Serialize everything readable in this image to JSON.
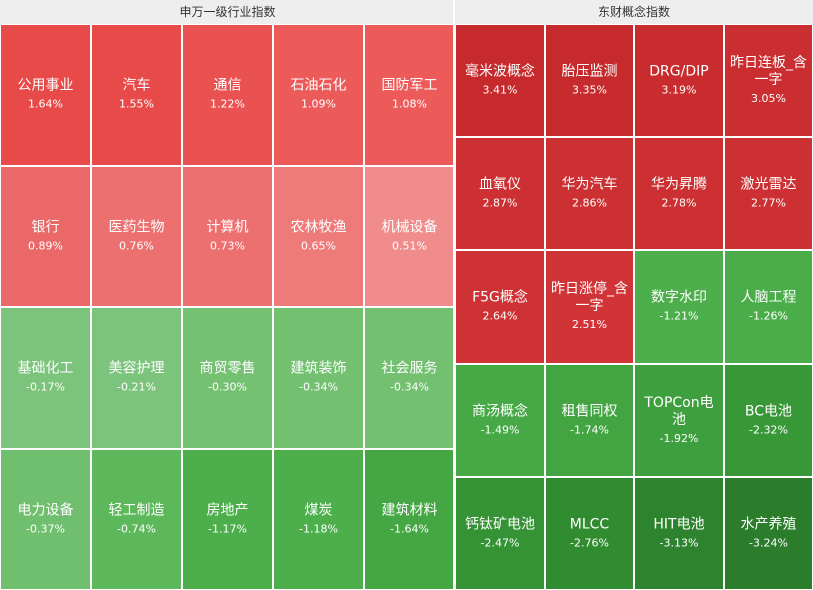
{
  "chart_data": [
    {
      "type": "heatmap",
      "title": "申万一级行业指数",
      "columns": 5,
      "cells": [
        {
          "name": "公用事业",
          "value": "1.64%",
          "color": "#e84a4a"
        },
        {
          "name": "汽车",
          "value": "1.55%",
          "color": "#e84a4a"
        },
        {
          "name": "通信",
          "value": "1.22%",
          "color": "#ea5252"
        },
        {
          "name": "石油石化",
          "value": "1.09%",
          "color": "#ec5a5a"
        },
        {
          "name": "国防军工",
          "value": "1.08%",
          "color": "#ec5a5a"
        },
        {
          "name": "银行",
          "value": "0.89%",
          "color": "#ea6868"
        },
        {
          "name": "医药生物",
          "value": "0.76%",
          "color": "#ec7070"
        },
        {
          "name": "计算机",
          "value": "0.73%",
          "color": "#ec7070"
        },
        {
          "name": "农林牧渔",
          "value": "0.65%",
          "color": "#ee7a7a"
        },
        {
          "name": "机械设备",
          "value": "0.51%",
          "color": "#f08c8c"
        },
        {
          "name": "基础化工",
          "value": "-0.17%",
          "color": "#7cc47b"
        },
        {
          "name": "美容护理",
          "value": "-0.21%",
          "color": "#7cc47b"
        },
        {
          "name": "商贸零售",
          "value": "-0.30%",
          "color": "#74c172"
        },
        {
          "name": "建筑装饰",
          "value": "-0.34%",
          "color": "#72c070"
        },
        {
          "name": "社会服务",
          "value": "-0.34%",
          "color": "#72c070"
        },
        {
          "name": "电力设备",
          "value": "-0.37%",
          "color": "#70bf6e"
        },
        {
          "name": "轻工制造",
          "value": "-0.74%",
          "color": "#5cb85a"
        },
        {
          "name": "房地产",
          "value": "-1.17%",
          "color": "#4caf4c"
        },
        {
          "name": "煤炭",
          "value": "-1.18%",
          "color": "#4caf4c"
        },
        {
          "name": "建筑材料",
          "value": "-1.64%",
          "color": "#44a744"
        }
      ]
    },
    {
      "type": "heatmap",
      "title": "东财概念指数",
      "columns": 4,
      "cells": [
        {
          "name": "毫米波概念",
          "value": "3.41%",
          "color": "#c62a2c"
        },
        {
          "name": "胎压监测",
          "value": "3.35%",
          "color": "#c62a2c"
        },
        {
          "name": "DRG/DIP",
          "value": "3.19%",
          "color": "#c82c2e"
        },
        {
          "name": "昨日连板_含一字",
          "value": "3.05%",
          "color": "#ca2e30"
        },
        {
          "name": "血氧仪",
          "value": "2.87%",
          "color": "#cc3032"
        },
        {
          "name": "华为汽车",
          "value": "2.86%",
          "color": "#cc3032"
        },
        {
          "name": "华为昇腾",
          "value": "2.78%",
          "color": "#cc3032"
        },
        {
          "name": "激光雷达",
          "value": "2.77%",
          "color": "#cc3032"
        },
        {
          "name": "F5G概念",
          "value": "2.64%",
          "color": "#ce3234"
        },
        {
          "name": "昨日涨停_含一字",
          "value": "2.51%",
          "color": "#d03436"
        },
        {
          "name": "数字水印",
          "value": "-1.21%",
          "color": "#4caf4c"
        },
        {
          "name": "人脑工程",
          "value": "-1.26%",
          "color": "#4aad4a"
        },
        {
          "name": "商汤概念",
          "value": "-1.49%",
          "color": "#46a946"
        },
        {
          "name": "租售同权",
          "value": "-1.74%",
          "color": "#42a542"
        },
        {
          "name": "TOPCon电池",
          "value": "-1.92%",
          "color": "#3e9f3e"
        },
        {
          "name": "BC电池",
          "value": "-2.32%",
          "color": "#389838"
        },
        {
          "name": "钙钛矿电池",
          "value": "-2.47%",
          "color": "#359235"
        },
        {
          "name": "MLCC",
          "value": "-2.76%",
          "color": "#318b31"
        },
        {
          "name": "HIT电池",
          "value": "-3.13%",
          "color": "#2e842e"
        },
        {
          "name": "水产养殖",
          "value": "-3.24%",
          "color": "#2b7d2b"
        }
      ]
    }
  ]
}
